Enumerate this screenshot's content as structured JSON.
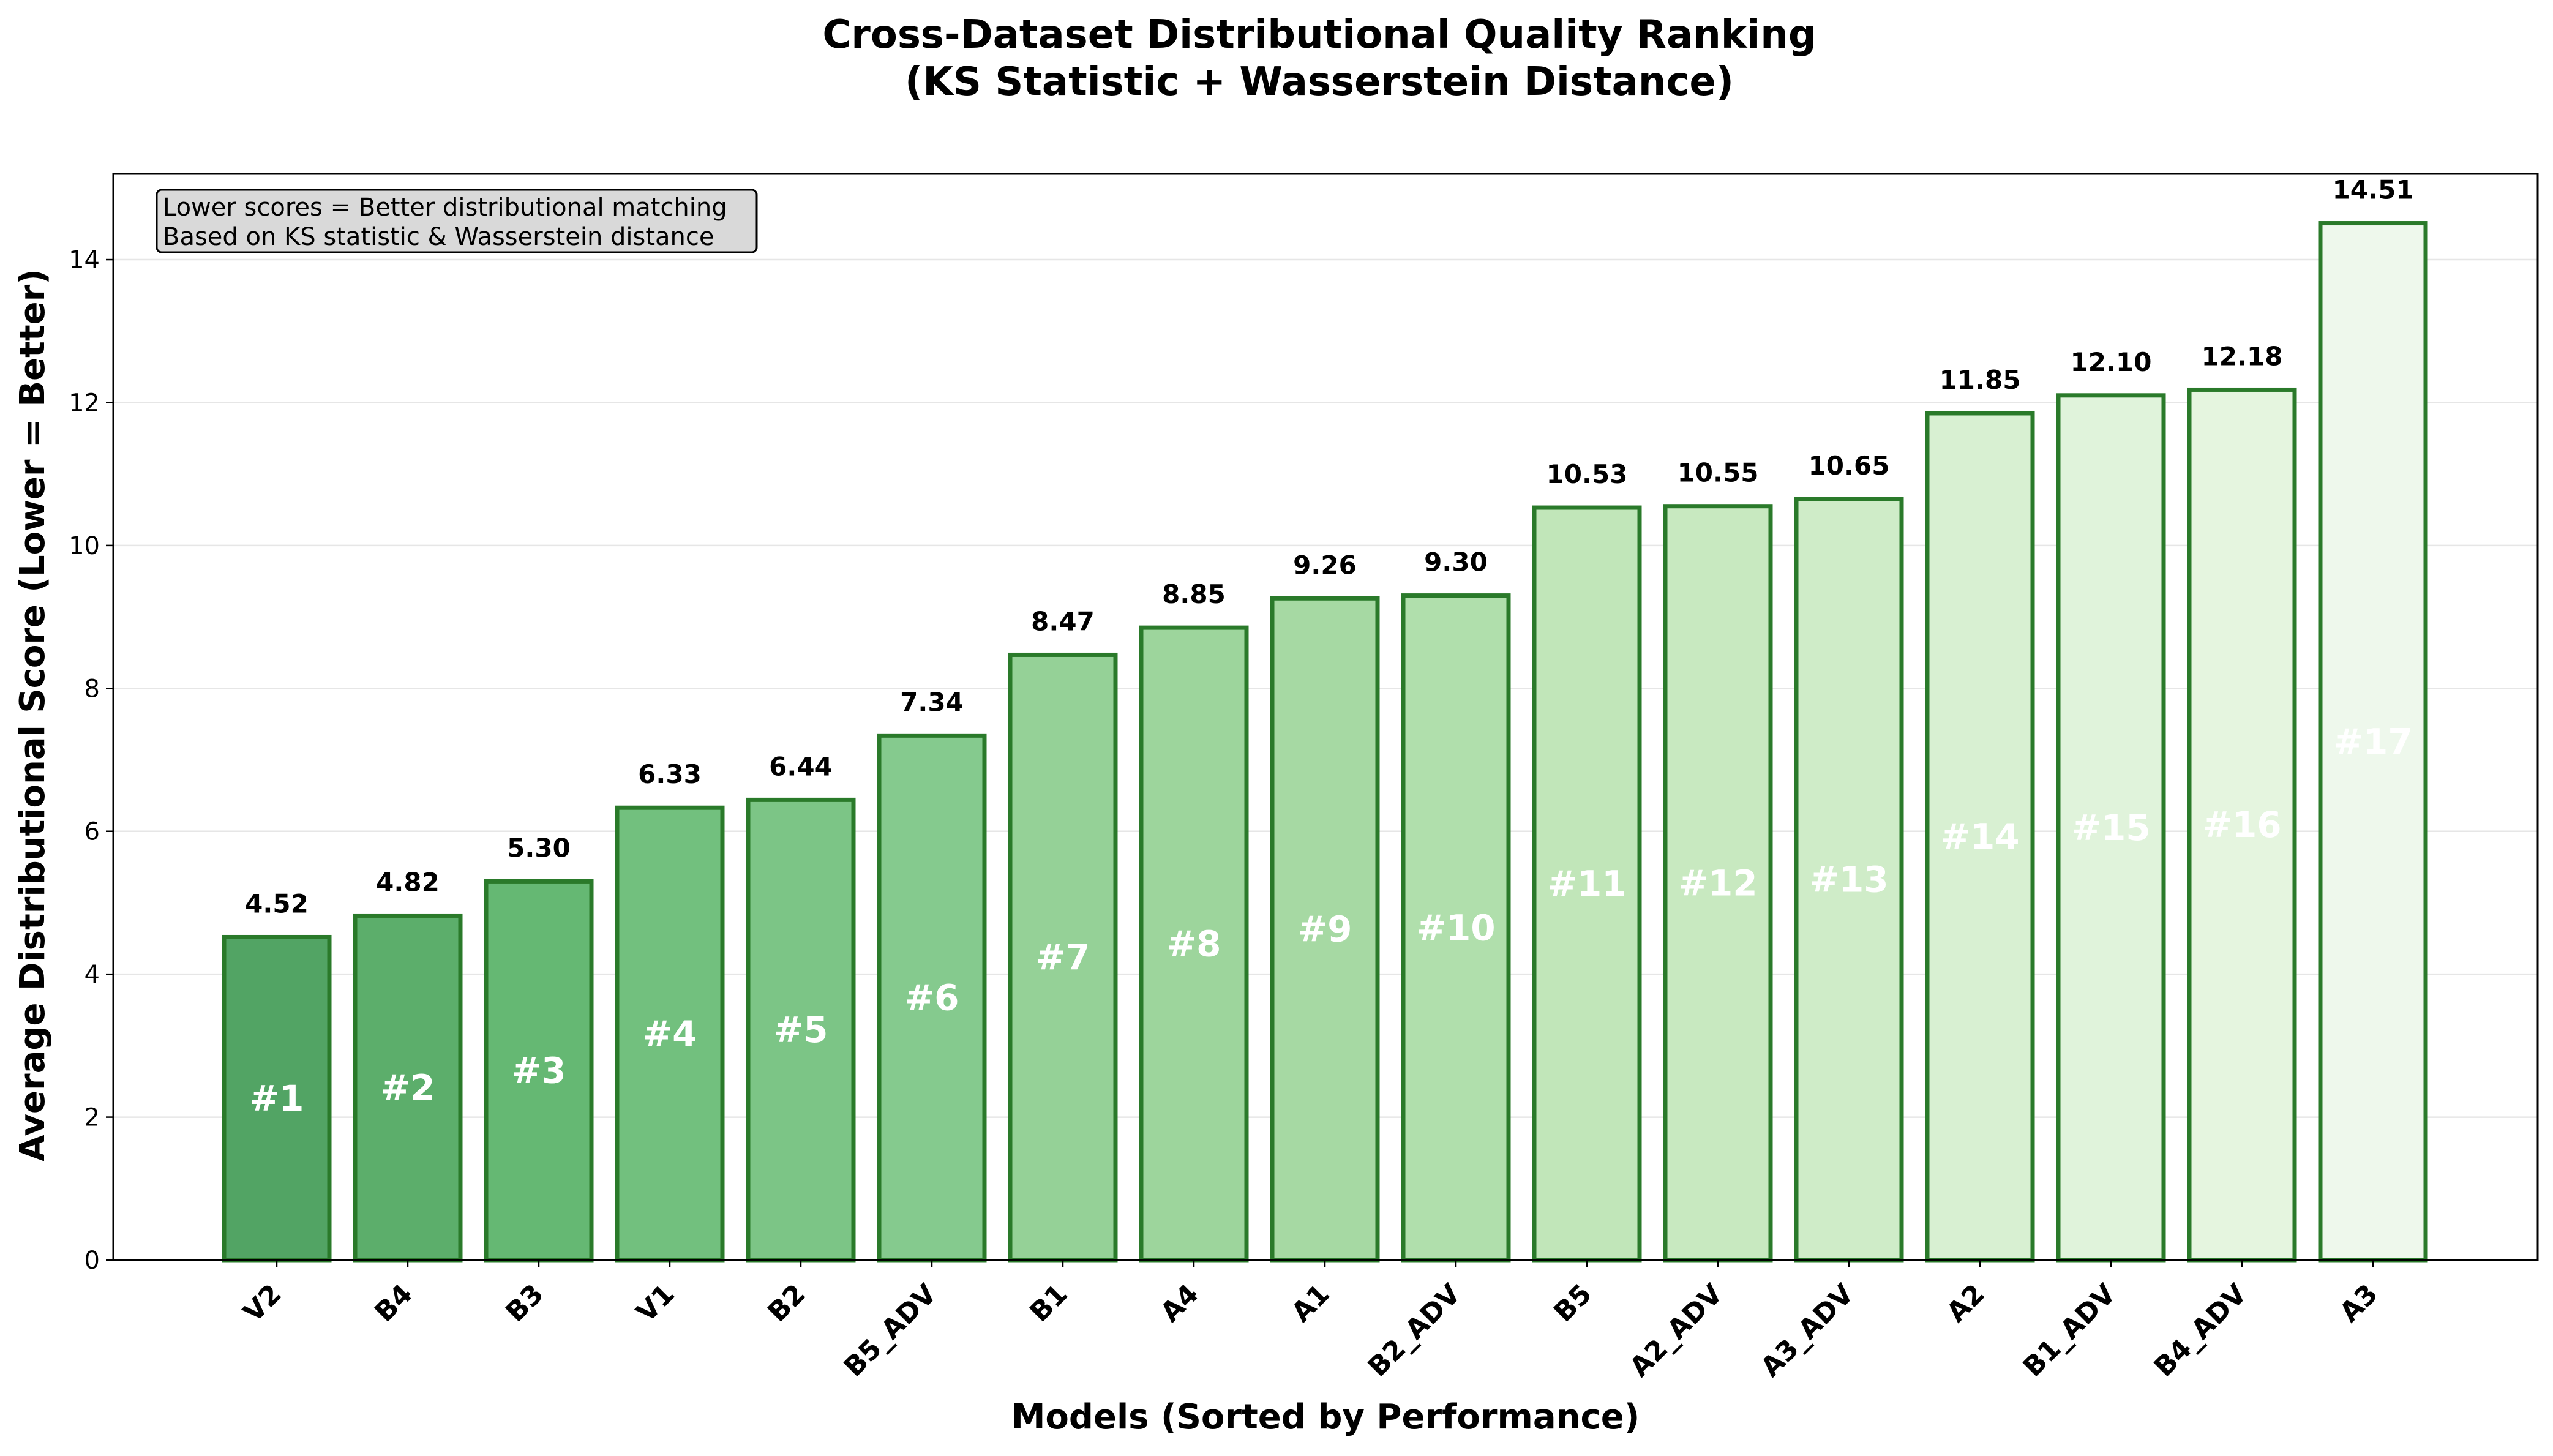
{
  "chart_data": {
    "type": "bar",
    "title": [
      "Cross-Dataset Distributional Quality Ranking",
      "(KS Statistic + Wasserstein Distance)"
    ],
    "xlabel": "Models (Sorted by Performance)",
    "ylabel": "Average Distributional Score (Lower = Better)",
    "ylim": [
      0,
      15.2
    ],
    "yticks": [
      0,
      2,
      4,
      6,
      8,
      10,
      12,
      14
    ],
    "grid": "horizontal",
    "categories": [
      "V2",
      "B4",
      "B3",
      "V1",
      "B2",
      "B5_ADV",
      "B1",
      "A4",
      "A1",
      "B2_ADV",
      "B5",
      "A2_ADV",
      "A3_ADV",
      "A2",
      "B1_ADV",
      "B4_ADV",
      "A3"
    ],
    "values": [
      4.52,
      4.82,
      5.3,
      6.33,
      6.44,
      7.34,
      8.47,
      8.85,
      9.26,
      9.3,
      10.53,
      10.55,
      10.65,
      11.85,
      12.1,
      12.18,
      14.51
    ],
    "value_labels": [
      "4.52",
      "4.82",
      "5.30",
      "6.33",
      "6.44",
      "7.34",
      "8.47",
      "8.85",
      "9.26",
      "9.30",
      "10.53",
      "10.55",
      "10.65",
      "11.85",
      "12.10",
      "12.18",
      "14.51"
    ],
    "rank_labels": [
      "#1",
      "#2",
      "#3",
      "#4",
      "#5",
      "#6",
      "#7",
      "#8",
      "#9",
      "#10",
      "#11",
      "#12",
      "#13",
      "#14",
      "#15",
      "#16",
      "#17"
    ],
    "bar_colors": [
      "#52a464",
      "#5cae6b",
      "#65b873",
      "#72c07e",
      "#7cc586",
      "#85ca8e",
      "#95d197",
      "#9dd59c",
      "#a6d9a3",
      "#b0dfac",
      "#c1e6b9",
      "#c8e9c0",
      "#cfecc8",
      "#d8f0d2",
      "#e0f3db",
      "#e5f5df",
      "#eef8ec"
    ],
    "bar_edge_color": "#2a7a2a",
    "annotation": [
      "Lower scores = Better distributional matching",
      "Based on KS statistic & Wasserstein distance"
    ]
  }
}
